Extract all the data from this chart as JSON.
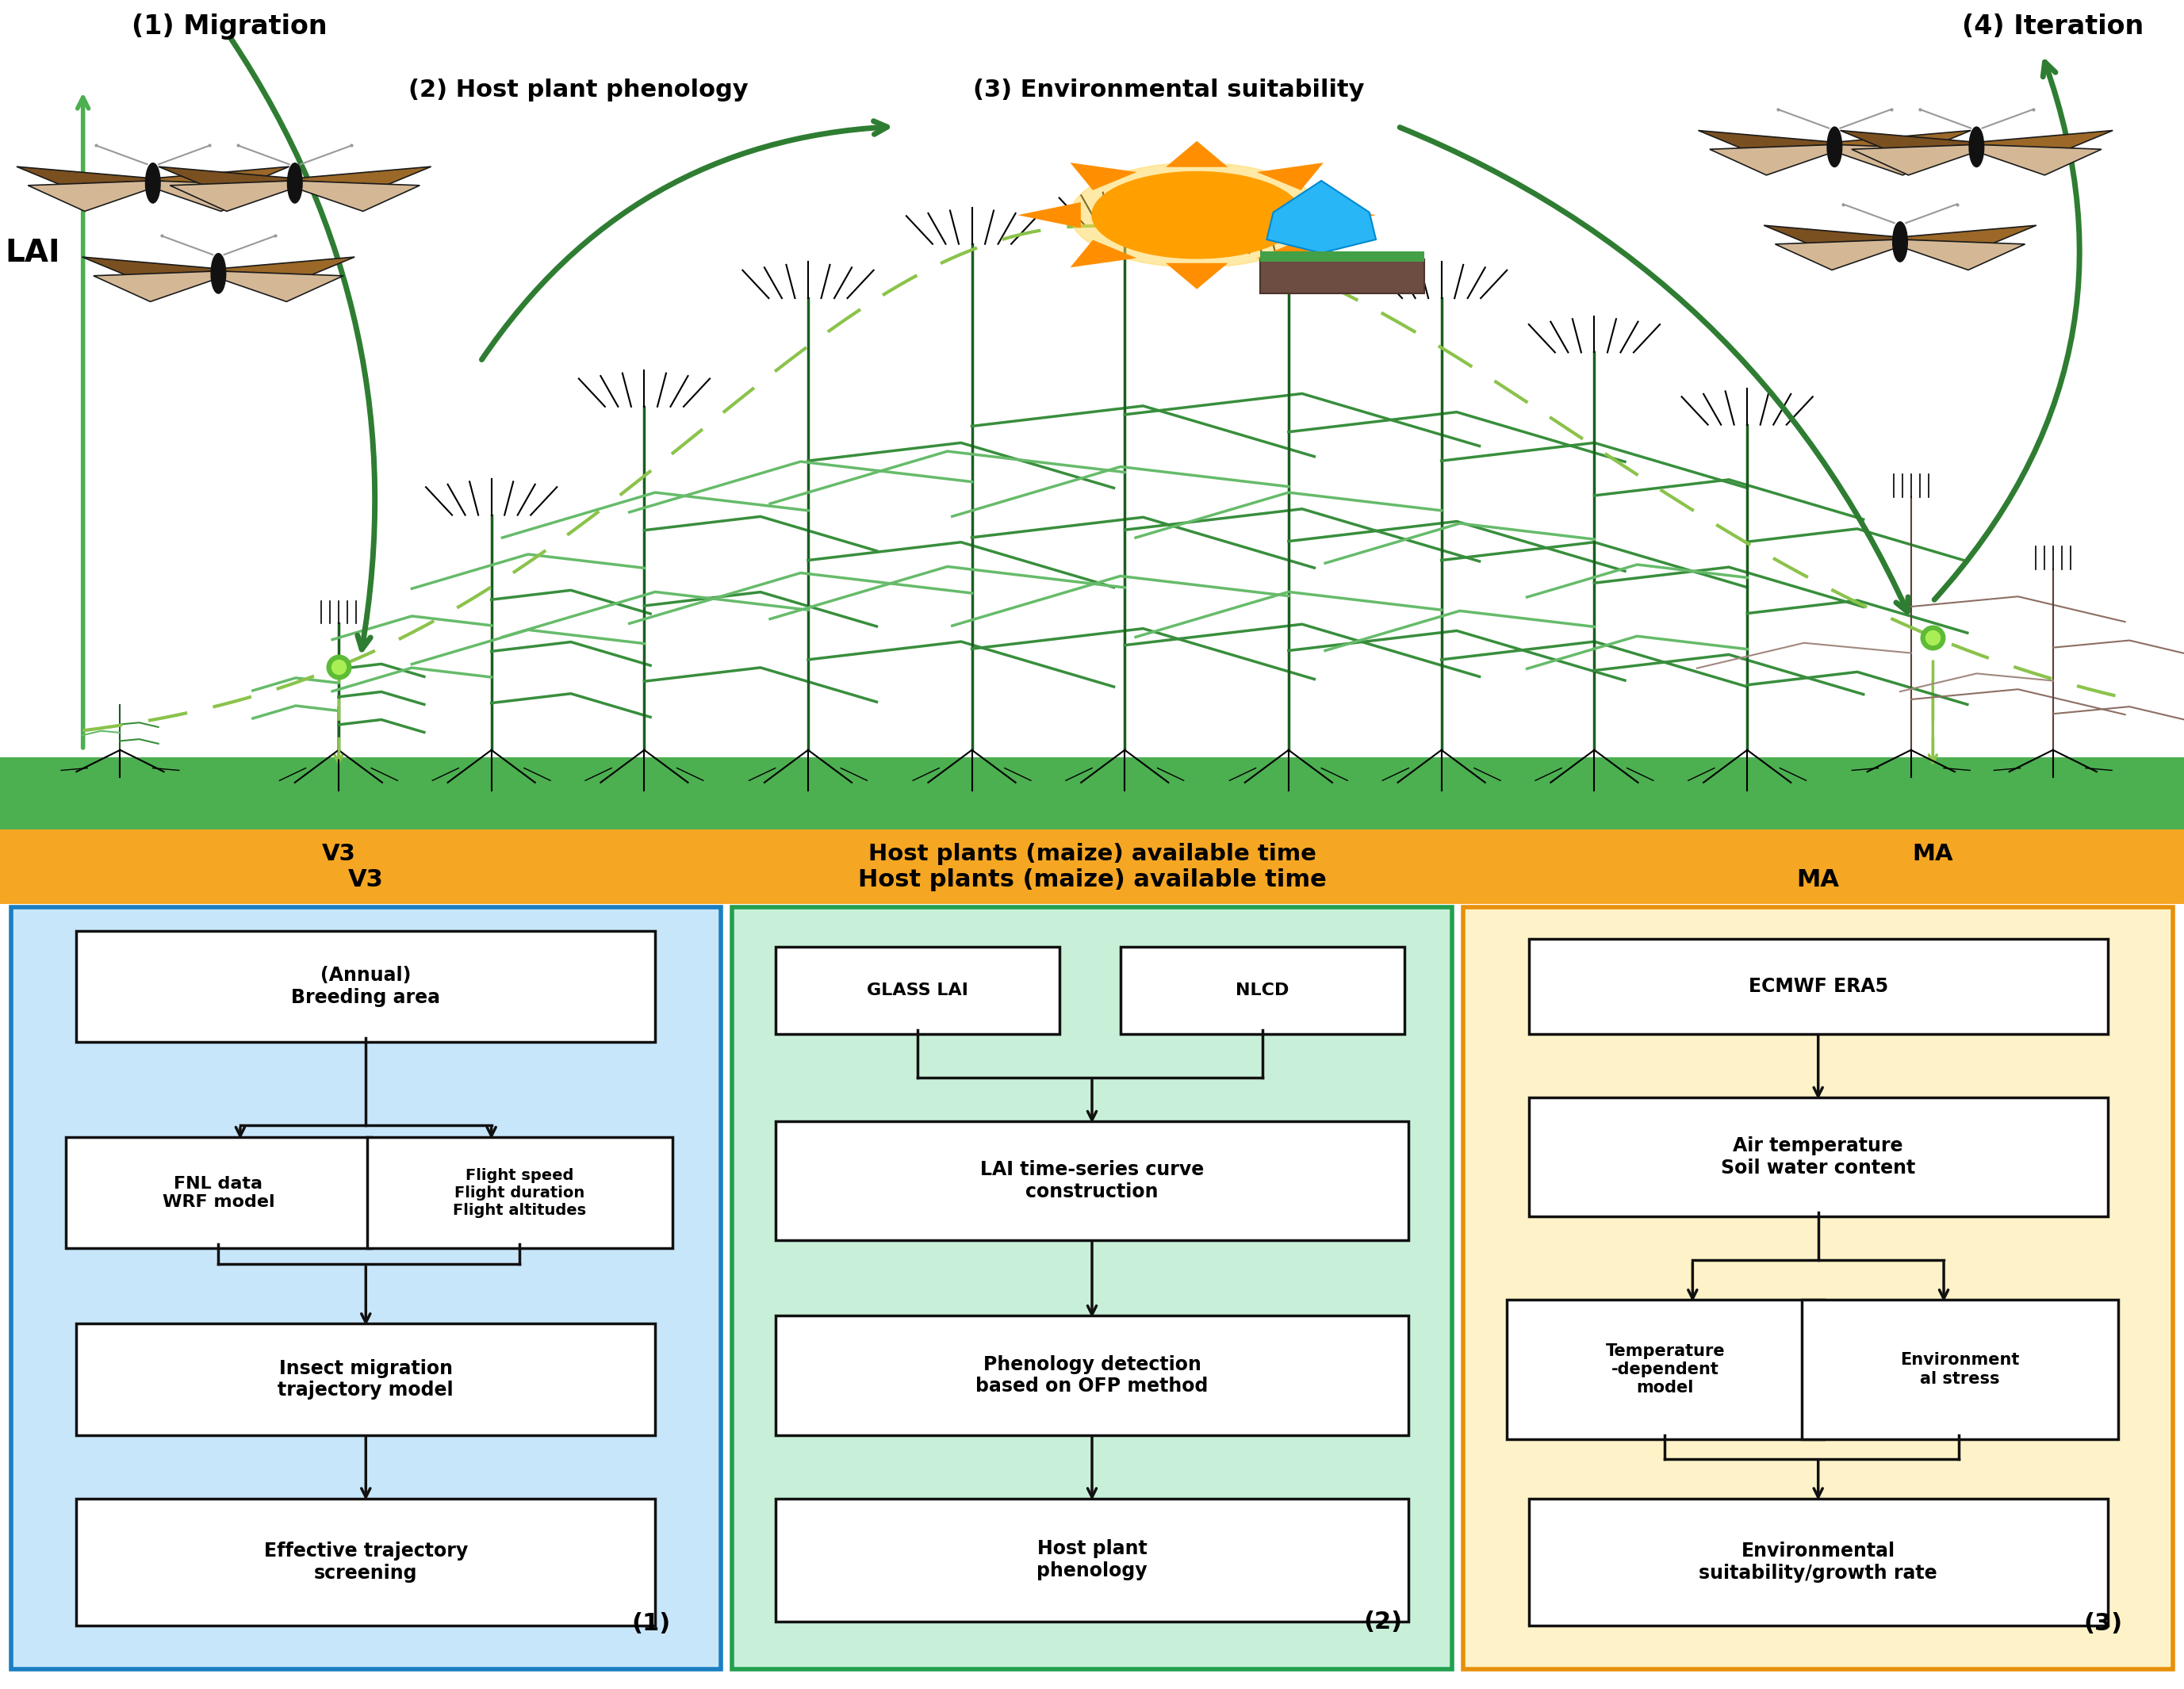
{
  "fig_width": 27.54,
  "fig_height": 21.3,
  "bg_color": "#ffffff",
  "orange_bar_color": "#F5A623",
  "green_bar_color": "#4CAF50",
  "lai_arrow_color": "#4CAF50",
  "dashed_curve_color": "#8BC34A",
  "solid_arrow_color": "#2E7D32",
  "labels": {
    "migration": "(1) Migration",
    "host_plant": "(2) Host plant phenology",
    "env_suit": "(3) Environmental suitability",
    "iteration": "(4) Iteration",
    "lai": "LAI",
    "v3": "V3",
    "host_plants_time": "Host plants (maize) available time",
    "ma": "MA"
  },
  "box1_bg": "#C8E6FA",
  "box1_border": "#1A7FC1",
  "box2_bg": "#C8F0D8",
  "box2_border": "#22A050",
  "box3_bg": "#FEF3C8",
  "box3_border": "#E8900A",
  "inner_bg": "#ffffff",
  "inner_border": "#111111",
  "arrow_color": "#111111",
  "label1": "(1)",
  "label2": "(2)",
  "label3": "(3)"
}
